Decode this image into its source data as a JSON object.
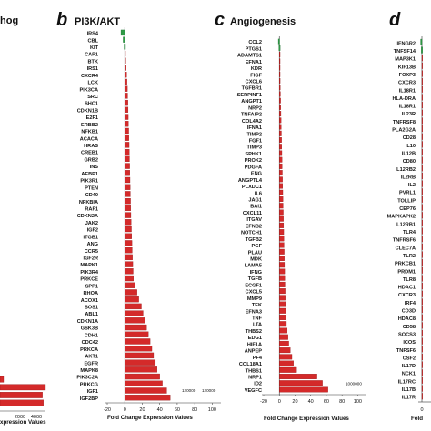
{
  "chart_data": [
    {
      "panel": "a",
      "type": "bar",
      "orientation": "horizontal",
      "title_fragment": "hog",
      "x_ticks": [
        "2000",
        "4000"
      ],
      "xlabel_fragment": "xpression Values",
      "series": [
        {
          "values": [
            300,
            4500,
            4200,
            4300
          ]
        }
      ],
      "colors": {
        "up": "#d42a2a",
        "down": "#2e9a45"
      }
    },
    {
      "panel": "b",
      "type": "bar",
      "orientation": "horizontal",
      "title": "PI3K/AKT",
      "xlabel": "Fold Change Expression Values",
      "x_ticks": [
        "-20",
        "0",
        "20",
        "40",
        "60",
        "80",
        "100"
      ],
      "xlim": [
        -20,
        110
      ],
      "categories": [
        "IRS4",
        "CBL",
        "KIT",
        "CAP1",
        "BTK",
        "IRS1",
        "CXCR4",
        "LCK",
        "PIK3CA",
        "SRC",
        "SHC1",
        "CDKN1B",
        "E2F1",
        "ERBB2",
        "NFKB1",
        "ACACA",
        "HRAS",
        "CREB1",
        "GRB2",
        "INS",
        "AEBP1",
        "PIK3R1",
        "PTEN",
        "CD40",
        "NFKBIA",
        "RAF1",
        "CDKN2A",
        "JAK2",
        "IGF2",
        "ITGB1",
        "ANG",
        "CCR5",
        "IGF2R",
        "MAPK1",
        "PIK3R4",
        "PRKCE",
        "SPP1",
        "RHOA",
        "ACOX1",
        "SOS1",
        "ABL1",
        "CDKN1A",
        "GSK3B",
        "CDH1",
        "CDC42",
        "PRKCA",
        "AKT1",
        "EGFR",
        "MAPK8",
        "PIK3C2A",
        "PRKCG",
        "IGF1",
        "IGF2BP"
      ],
      "values": [
        -3.5,
        -1.5,
        -0.6,
        0.6,
        1.2,
        1.6,
        2.2,
        2.5,
        3.0,
        3.3,
        3.6,
        3.8,
        4.0,
        4.2,
        4.5,
        4.7,
        5.0,
        5.2,
        5.4,
        5.6,
        5.8,
        6.0,
        6.2,
        6.4,
        6.6,
        6.8,
        7.0,
        7.3,
        7.6,
        7.9,
        8.2,
        8.5,
        8.8,
        9.2,
        9.6,
        10.0,
        12,
        14,
        16,
        19,
        21,
        23,
        25,
        27,
        29,
        31,
        33,
        35,
        37,
        40,
        43,
        48,
        52
      ],
      "data_labels": [
        {
          "category": "IGF1",
          "text": "120000"
        },
        {
          "category": "IGF1",
          "text": "120000"
        }
      ],
      "colors": {
        "up": "#d42a2a",
        "down": "#2e9a45"
      }
    },
    {
      "panel": "c",
      "type": "bar",
      "orientation": "horizontal",
      "title": "Angiogenesis",
      "xlabel": "Fold Change Expression Values",
      "x_ticks": [
        "-20",
        "0",
        "20",
        "40",
        "60",
        "80",
        "100"
      ],
      "xlim": [
        -20,
        110
      ],
      "categories": [
        "CCL2",
        "PTGS1",
        "ADAMTS1",
        "EFNA1",
        "KDR",
        "FIGF",
        "CXCL6",
        "TGFBR1",
        "SERPINF1",
        "ANGPT1",
        "NRP2",
        "TNFAIP2",
        "COL4A2",
        "IFNA1",
        "TIMP2",
        "FGF1",
        "TIMP3",
        "SPHK1",
        "PROK2",
        "PDGFA",
        "ENG",
        "ANGPTL4",
        "PLXDC1",
        "IL6",
        "JAG1",
        "BAI1",
        "CXCL11",
        "ITGAV",
        "EFNB2",
        "NOTCH1",
        "TGFB2",
        "PGF",
        "PLAU",
        "MDK",
        "LAMA5",
        "IFNG",
        "TGFB",
        "ECGF1",
        "CXCL5",
        "MMP9",
        "TEK",
        "EFNA3",
        "TNF",
        "LTA",
        "THBS2",
        "EDG1",
        "HIF1A",
        "ANPEP",
        "PF4",
        "COL18A1",
        "THBS1",
        "NRP1",
        "ID2",
        "VEGFC"
      ],
      "values": [
        -1.0,
        -0.5,
        0.2,
        0.4,
        0.6,
        0.8,
        1.0,
        1.2,
        1.4,
        1.6,
        1.8,
        2.0,
        2.2,
        2.4,
        2.6,
        2.8,
        3.0,
        3.2,
        3.4,
        3.6,
        3.8,
        4.0,
        4.2,
        4.4,
        4.6,
        4.8,
        5.0,
        5.2,
        5.4,
        5.6,
        5.8,
        6.0,
        6.2,
        6.4,
        6.6,
        6.8,
        7.0,
        7.2,
        7.4,
        7.6,
        7.8,
        8.0,
        8.5,
        9.0,
        10,
        11,
        12,
        14,
        16,
        18,
        22,
        48,
        55,
        62
      ],
      "data_labels": [
        {
          "category": "ID2",
          "text": "1000000"
        }
      ],
      "colors": {
        "up": "#d42a2a",
        "down": "#2e9a45"
      }
    },
    {
      "panel": "d",
      "type": "bar",
      "orientation": "horizontal",
      "categories": [
        "IFNGR2",
        "TNFSF14",
        "MAP3K1",
        "KIF13B",
        "FOXP3",
        "CXCR3",
        "IL18R1",
        "HLA-DRA",
        "IL18R1",
        "IL23R",
        "TNFRSF8",
        "PLA2G2A",
        "CD28",
        "IL10",
        "IL12B",
        "CD80",
        "IL12RB2",
        "IL2RB",
        "IL2",
        "PVRL1",
        "TOLLIP",
        "CEP76",
        "MAPKAPK2",
        "IL12RB1",
        "TLR4",
        "TNFRSF6",
        "CLEC7A",
        "TLR2",
        "PRKCB1",
        "PRDM1",
        "TLR8",
        "HDAC1",
        "CXCR3",
        "IRF4",
        "CD3D",
        "HDAC8",
        "CD58",
        "SOCS3",
        "ICOS",
        "TNFSF6",
        "CSF2",
        "IL17D",
        "NCK1",
        "IL17RC",
        "IL17B",
        "IL17R"
      ],
      "values": [
        -1.2,
        -0.6,
        0.2,
        0.3,
        0.4,
        0.5,
        0.6,
        0.7,
        0.8,
        0.9,
        1.0,
        1.1,
        1.2,
        1.3,
        1.4,
        1.5,
        1.6,
        1.7,
        1.8,
        1.9,
        2.0,
        2.1,
        2.2,
        2.3,
        2.4,
        2.5,
        2.6,
        2.7,
        2.8,
        2.9,
        3.0,
        3.1,
        3.2,
        3.3,
        3.4,
        3.5,
        3.6,
        3.7,
        3.8,
        3.9,
        4.0,
        4.1,
        4.2,
        4.3,
        4.4,
        4.5
      ],
      "x_ticks": [
        "0"
      ],
      "xlabel_fragment": "Fold",
      "colors": {
        "up": "#d42a2a",
        "down": "#2e9a45"
      }
    }
  ]
}
